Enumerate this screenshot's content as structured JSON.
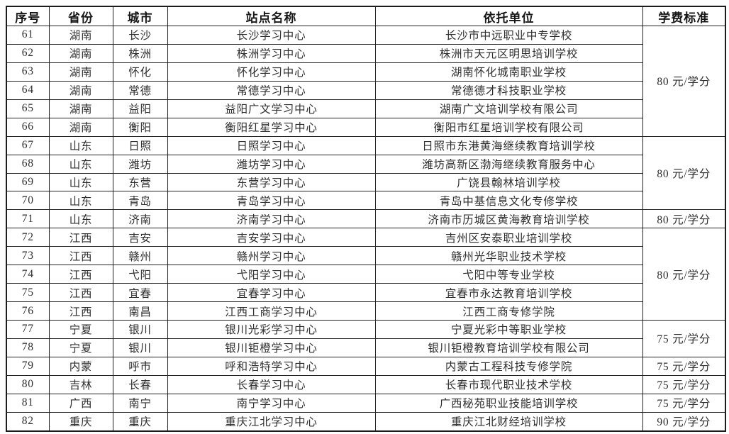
{
  "table": {
    "columns": [
      "序号",
      "省份",
      "城市",
      "站点名称",
      "依托单位",
      "学费标准"
    ],
    "rows": [
      {
        "no": "61",
        "province": "湖南",
        "city": "长沙",
        "site": "长沙学习中心",
        "org": "长沙市中远职业中专学校",
        "fee": "80 元/学分",
        "fee_rowspan": 6
      },
      {
        "no": "62",
        "province": "湖南",
        "city": "株洲",
        "site": "株洲学习中心",
        "org": "株洲市天元区明思培训学校"
      },
      {
        "no": "63",
        "province": "湖南",
        "city": "怀化",
        "site": "怀化学习中心",
        "org": "湖南怀化城南职业学校"
      },
      {
        "no": "64",
        "province": "湖南",
        "city": "常德",
        "site": "常德学习中心",
        "org": "常德德才科技职业学校"
      },
      {
        "no": "65",
        "province": "湖南",
        "city": "益阳",
        "site": "益阳广文学习中心",
        "org": "湖南广文培训学校有限公司"
      },
      {
        "no": "66",
        "province": "湖南",
        "city": "衡阳",
        "site": "衡阳红星学习中心",
        "org": "衡阳市红星培训学校有限公司"
      },
      {
        "no": "67",
        "province": "山东",
        "city": "日照",
        "site": "日照学习中心",
        "org": "日照市东港黄海继续教育培训学校",
        "fee": "80 元/学分",
        "fee_rowspan": 4
      },
      {
        "no": "68",
        "province": "山东",
        "city": "潍坊",
        "site": "潍坊学习中心",
        "org": "潍坊高新区渤海继续教育服务中心"
      },
      {
        "no": "69",
        "province": "山东",
        "city": "东营",
        "site": "东营学习中心",
        "org": "广饶县翰林培训学校"
      },
      {
        "no": "70",
        "province": "山东",
        "city": "青岛",
        "site": "青岛学习中心",
        "org": "青岛中基信息文化专修学校"
      },
      {
        "no": "71",
        "province": "山东",
        "city": "济南",
        "site": "济南学习中心",
        "org": "济南市历城区黄海教育培训学校",
        "fee": "80 元/学分",
        "fee_rowspan": 1
      },
      {
        "no": "72",
        "province": "江西",
        "city": "吉安",
        "site": "吉安学习中心",
        "org": "吉州区安泰职业培训学校",
        "fee": "80 元/学分",
        "fee_rowspan": 5
      },
      {
        "no": "73",
        "province": "江西",
        "city": "赣州",
        "site": "赣州学习中心",
        "org": "赣州光华职业技术学校"
      },
      {
        "no": "74",
        "province": "江西",
        "city": "弋阳",
        "site": "弋阳学习中心",
        "org": "弋阳中等专业学校"
      },
      {
        "no": "75",
        "province": "江西",
        "city": "宜春",
        "site": "宜春学习中心",
        "org": "宜春市永达教育培训学校"
      },
      {
        "no": "76",
        "province": "江西",
        "city": "南昌",
        "site": "江西工商学习中心",
        "org": "江西工商专修学院"
      },
      {
        "no": "77",
        "province": "宁夏",
        "city": "银川",
        "site": "银川光彩学习中心",
        "org": "宁夏光彩中等职业学校",
        "fee": "75 元/学分",
        "fee_rowspan": 2
      },
      {
        "no": "78",
        "province": "宁夏",
        "city": "银川",
        "site": "银川钜橙学习中心",
        "org": "银川钜橙教育培训学校有限公司"
      },
      {
        "no": "79",
        "province": "内蒙",
        "city": "呼市",
        "site": "呼和浩特学习中心",
        "org": "内蒙古工程科技专修学院",
        "fee": "75 元/学分",
        "fee_rowspan": 1
      },
      {
        "no": "80",
        "province": "吉林",
        "city": "长春",
        "site": "长春学习中心",
        "org": "长春市现代职业技术学校",
        "fee": "75 元/学分",
        "fee_rowspan": 1
      },
      {
        "no": "81",
        "province": "广西",
        "city": "南宁",
        "site": "南宁学习中心",
        "org": "广西秘苑职业技能培训学校",
        "fee": "75 元/学分",
        "fee_rowspan": 1
      },
      {
        "no": "82",
        "province": "重庆",
        "city": "重庆",
        "site": "重庆江北学习中心",
        "org": "重庆江北财经培训学校",
        "fee": "90 元/学分",
        "fee_rowspan": 1
      }
    ]
  }
}
